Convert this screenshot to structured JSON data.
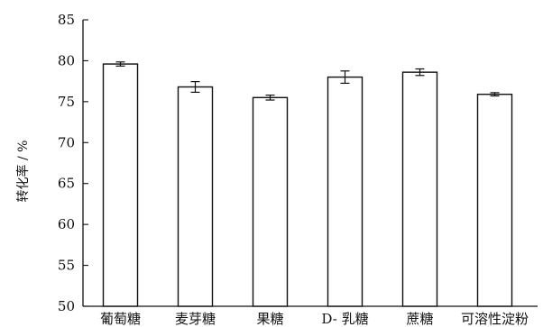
{
  "chart_data": {
    "type": "bar",
    "title": "",
    "xlabel": "",
    "ylabel": "转化率 / %",
    "ylim": [
      50,
      85
    ],
    "yticks": [
      50,
      55,
      60,
      65,
      70,
      75,
      80,
      85
    ],
    "grid": false,
    "legend": "none",
    "categories": [
      "葡萄糖",
      "麦芽糖",
      "果糖",
      "D- 乳糖",
      "蔗糖",
      "可溶性淀粉"
    ],
    "values": [
      79.6,
      76.8,
      75.5,
      78.0,
      78.6,
      75.9
    ],
    "errors": [
      0.25,
      0.65,
      0.3,
      0.75,
      0.4,
      0.2
    ],
    "bar_fill": "#ffffff",
    "bar_stroke": "#111111"
  }
}
